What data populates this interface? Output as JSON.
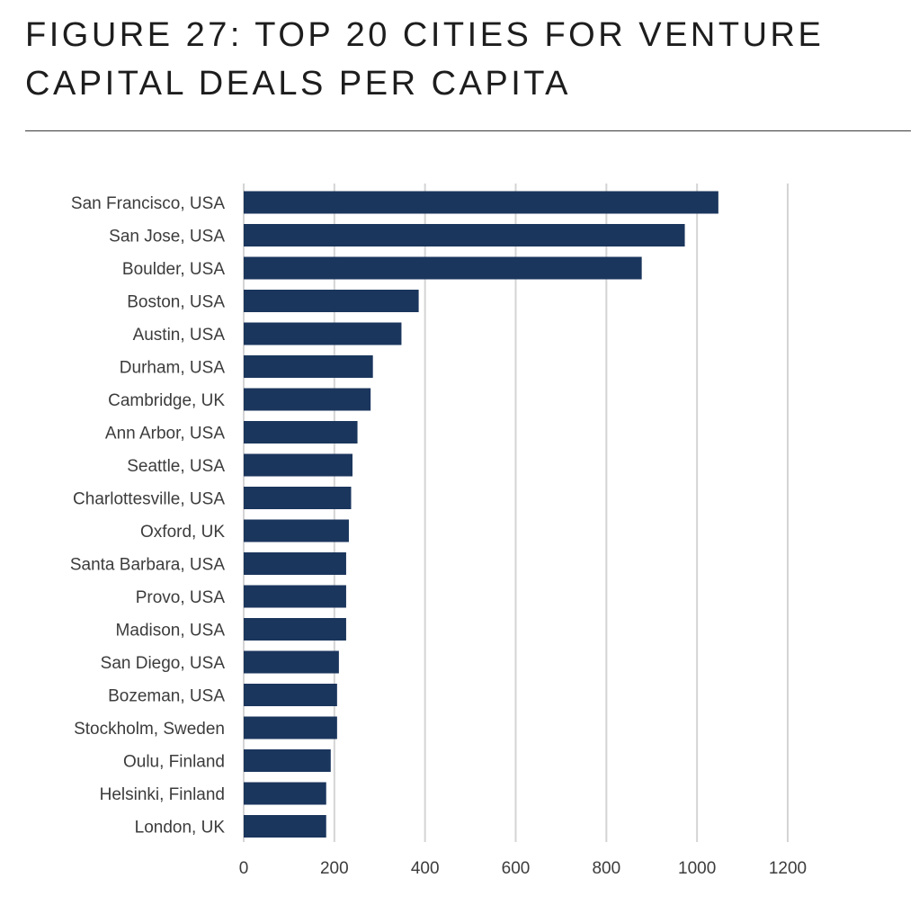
{
  "header": {
    "title": "FIGURE 27: TOP 20 CITIES FOR VENTURE CAPITAL DEALS PER CAPITA"
  },
  "colors": {
    "bar": "#1b365d",
    "grid": "#d4d4d4",
    "text": "#3c3c3c"
  },
  "chart_data": {
    "type": "bar",
    "orientation": "horizontal",
    "categories": [
      "San Francisco, USA",
      "San Jose, USA",
      "Boulder, USA",
      "Boston, USA",
      "Austin, USA",
      "Durham, USA",
      "Cambridge, UK",
      "Ann Arbor, USA",
      "Seattle, USA",
      "Charlottesville, USA",
      "Oxford, UK",
      "Santa Barbara, USA",
      "Provo, USA",
      "Madison, USA",
      "San Diego, USA",
      "Bozeman, USA",
      "Stockholm, Sweden",
      "Oulu, Finland",
      "Helsinki, Finland",
      "London, UK"
    ],
    "values": [
      1047,
      973,
      878,
      386,
      348,
      285,
      280,
      251,
      240,
      237,
      232,
      226,
      226,
      226,
      210,
      206,
      206,
      192,
      182,
      182
    ],
    "xlim": [
      0,
      1200
    ],
    "xticks": [
      0,
      200,
      400,
      600,
      800,
      1000,
      1200
    ],
    "grid": true,
    "legend": "none"
  }
}
